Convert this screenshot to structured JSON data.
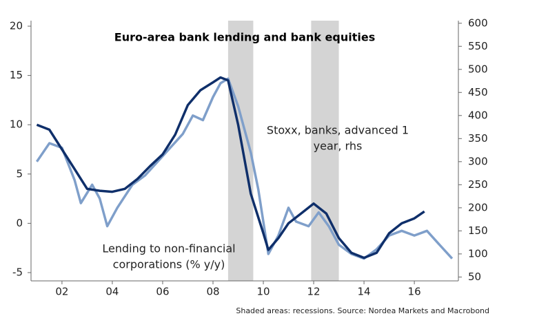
{
  "chart_data": {
    "type": "line",
    "title": "Euro-area bank lending and bank equities",
    "source": "Shaded areas: recessions. Source: Nordea Markets and Macrobond",
    "xlim": [
      2000.77,
      2017.75
    ],
    "xticks": [
      {
        "value": 2002,
        "label": "02"
      },
      {
        "value": 2004,
        "label": "04"
      },
      {
        "value": 2006,
        "label": "06"
      },
      {
        "value": 2008,
        "label": "08"
      },
      {
        "value": 2010,
        "label": "10"
      },
      {
        "value": 2012,
        "label": "12"
      },
      {
        "value": 2014,
        "label": "14"
      },
      {
        "value": 2016,
        "label": "16"
      }
    ],
    "ylim": [
      -5.84,
      20.56
    ],
    "yticks": [
      -5,
      0,
      5,
      10,
      15,
      20
    ],
    "y2lim": [
      41.6,
      605.6
    ],
    "y2ticks": [
      50,
      100,
      150,
      200,
      250,
      300,
      350,
      400,
      450,
      500,
      550,
      600
    ],
    "shaded_regions": [
      [
        2008.6,
        2009.6
      ],
      [
        2011.9,
        2013.0
      ]
    ],
    "shade_color": "#d4d4d4",
    "series": [
      {
        "name": [
          "Lending to non-financial",
          "corporations (% y/y)"
        ],
        "color": "#0f2f6a",
        "axis": "y",
        "x": [
          2001.0,
          2001.5,
          2002.0,
          2002.5,
          2003.0,
          2003.5,
          2004.0,
          2004.5,
          2005.0,
          2005.5,
          2006.0,
          2006.5,
          2007.0,
          2007.5,
          2008.0,
          2008.3,
          2008.6,
          2009.0,
          2009.5,
          2010.0,
          2010.2,
          2010.6,
          2011.0,
          2011.5,
          2012.0,
          2012.5,
          2013.0,
          2013.5,
          2014.0,
          2014.5,
          2015.0,
          2015.5,
          2016.0,
          2016.4
        ],
        "values": [
          10,
          9.5,
          7.5,
          5.5,
          3.5,
          3.3,
          3.2,
          3.5,
          4.5,
          5.8,
          7,
          9,
          12,
          13.5,
          14.3,
          14.8,
          14.5,
          10,
          3,
          -1,
          -2.7,
          -1.5,
          0,
          1,
          2,
          1,
          -1.5,
          -3,
          -3.5,
          -3,
          -1,
          0,
          0.5,
          1.2
        ]
      },
      {
        "name": [
          "Stoxx, banks, advanced 1",
          "year, rhs"
        ],
        "color": "#7f9fca",
        "axis": "y2",
        "x": [
          2001.0,
          2001.5,
          2002.0,
          2002.5,
          2002.75,
          2003.2,
          2003.5,
          2003.8,
          2004.2,
          2004.8,
          2005.3,
          2005.8,
          2006.3,
          2006.8,
          2007.2,
          2007.6,
          2008.0,
          2008.3,
          2008.6,
          2009.0,
          2009.5,
          2009.8,
          2010.2,
          2010.6,
          2011.0,
          2011.3,
          2011.8,
          2012.2,
          2012.6,
          2013.0,
          2013.5,
          2014.0,
          2014.5,
          2015.0,
          2015.5,
          2016.0,
          2016.5,
          2017.0,
          2017.5
        ],
        "values": [
          300,
          340,
          330,
          260,
          210,
          250,
          220,
          160,
          200,
          250,
          270,
          300,
          330,
          360,
          400,
          390,
          440,
          470,
          480,
          420,
          320,
          240,
          100,
          140,
          200,
          170,
          160,
          190,
          160,
          120,
          100,
          90,
          110,
          140,
          150,
          140,
          150,
          120,
          90
        ]
      }
    ]
  }
}
